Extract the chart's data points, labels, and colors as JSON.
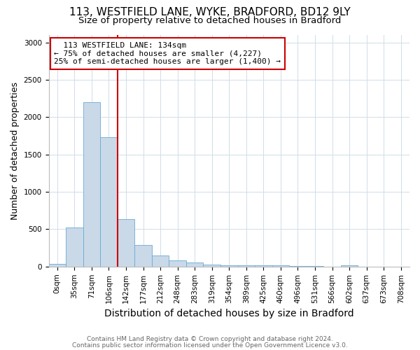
{
  "title1": "113, WESTFIELD LANE, WYKE, BRADFORD, BD12 9LY",
  "title2": "Size of property relative to detached houses in Bradford",
  "xlabel": "Distribution of detached houses by size in Bradford",
  "ylabel": "Number of detached properties",
  "footnote1": "Contains HM Land Registry data © Crown copyright and database right 2024.",
  "footnote2": "Contains public sector information licensed under the Open Government Licence v3.0.",
  "bin_labels": [
    "0sqm",
    "35sqm",
    "71sqm",
    "106sqm",
    "142sqm",
    "177sqm",
    "212sqm",
    "248sqm",
    "283sqm",
    "319sqm",
    "354sqm",
    "389sqm",
    "425sqm",
    "460sqm",
    "496sqm",
    "531sqm",
    "566sqm",
    "602sqm",
    "637sqm",
    "673sqm",
    "708sqm"
  ],
  "bar_heights": [
    35,
    520,
    2200,
    1730,
    640,
    290,
    145,
    80,
    50,
    30,
    20,
    20,
    15,
    20,
    5,
    3,
    2,
    20,
    2,
    1,
    1
  ],
  "bar_color": "#c9d9e8",
  "bar_edge_color": "#6aaad4",
  "red_line_x": 4,
  "red_line_color": "#cc0000",
  "annotation_text": "  113 WESTFIELD LANE: 134sqm\n← 75% of detached houses are smaller (4,227)\n25% of semi-detached houses are larger (1,400) →",
  "annotation_box_edge": "#cc0000",
  "ylim": [
    0,
    3100
  ],
  "yticks": [
    0,
    500,
    1000,
    1500,
    2000,
    2500,
    3000
  ],
  "title1_fontsize": 11,
  "title2_fontsize": 9.5,
  "xlabel_fontsize": 10,
  "ylabel_fontsize": 9,
  "tick_fontsize": 7.5,
  "annotation_fontsize": 8,
  "footnote_fontsize": 6.5,
  "background_color": "#ffffff",
  "grid_color": "#d0dde8"
}
